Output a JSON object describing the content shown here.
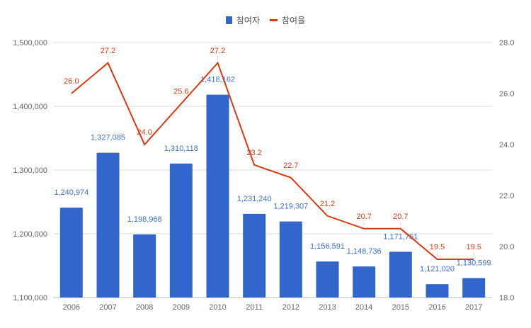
{
  "chart_data": {
    "type": "bar+line",
    "title": "",
    "categories": [
      "2006",
      "2007",
      "2008",
      "2009",
      "2010",
      "2011",
      "2012",
      "2013",
      "2014",
      "2015",
      "2016",
      "2017"
    ],
    "series": [
      {
        "name": "참여자",
        "type": "bar",
        "axis": "left",
        "color": "#3366cc",
        "values": [
          1240974,
          1327085,
          1198968,
          1310118,
          1418162,
          1231240,
          1219307,
          1156591,
          1148736,
          1171751,
          1121020,
          1130599
        ],
        "labels": [
          "1,240,974",
          "1,327,085",
          "1,198,968",
          "1,310,118",
          "1,418,162",
          "1,231,240",
          "1,219,307",
          "1,156,591",
          "1,148,736",
          "1,171,751",
          "1,121,020",
          "1,130,599"
        ]
      },
      {
        "name": "참여율",
        "type": "line",
        "axis": "right",
        "color": "#dc3912",
        "values": [
          26.0,
          27.2,
          24.0,
          25.6,
          27.2,
          23.2,
          22.7,
          21.2,
          20.7,
          20.7,
          19.5,
          19.5
        ],
        "labels": [
          "26.0",
          "27.2",
          "24.0",
          "25.6",
          "27.2",
          "23.2",
          "22.7",
          "21.2",
          "20.7",
          "20.7",
          "19.5",
          "19.5"
        ]
      }
    ],
    "left_axis": {
      "ylim": [
        1100000,
        1500000
      ],
      "ticks": [
        1100000,
        1200000,
        1300000,
        1400000,
        1500000
      ],
      "tick_labels": [
        "1,100,000",
        "1,200,000",
        "1,300,000",
        "1,400,000",
        "1,500,000"
      ]
    },
    "right_axis": {
      "ylim": [
        18,
        28
      ],
      "ticks": [
        18,
        20,
        22,
        24,
        26,
        28
      ],
      "tick_labels": [
        "18.0",
        "20.0",
        "22.0",
        "24.0",
        "26.0",
        "28.0"
      ]
    },
    "grid": true,
    "legend": "top"
  }
}
